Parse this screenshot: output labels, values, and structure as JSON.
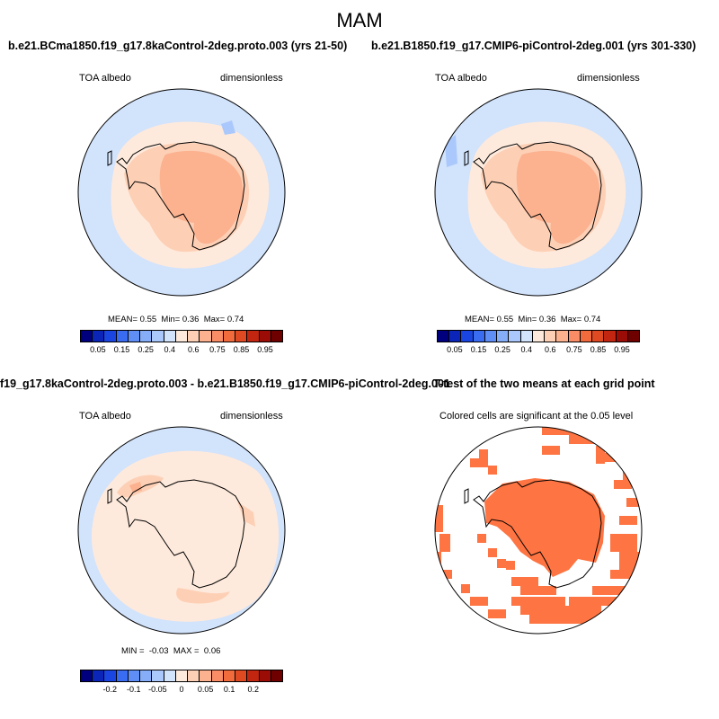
{
  "season": "MAM",
  "chart_data": [
    {
      "type": "heatmap",
      "title": "b.e21.BCma1850.f19_g17.8kaControl-2deg.proto.003 (yrs 21-50)",
      "left_label": "TOA albedo",
      "right_label": "dimensionless",
      "stats": {
        "mean_label": "MEAN=",
        "mean": "0.55",
        "min_label": "Min=",
        "min": "0.36",
        "max_label": "Max=",
        "max": "0.74"
      },
      "levels": [
        "0.05",
        "0.15",
        "0.25",
        "0.4",
        "0.6",
        "0.75",
        "0.85",
        "0.95"
      ],
      "colors": [
        "#00007f",
        "#0a25b8",
        "#1a45e0",
        "#3a6cf2",
        "#5e8ef6",
        "#86aef8",
        "#aac8fb",
        "#d2e3fc",
        "#feeadc",
        "#fdd0b6",
        "#fcb18f",
        "#fa8d66",
        "#f26b3d",
        "#e04a22",
        "#c22510",
        "#9a0c05",
        "#6e0000"
      ]
    },
    {
      "type": "heatmap",
      "title": "b.e21.B1850.f19_g17.CMIP6-piControl-2deg.001 (yrs 301-330)",
      "left_label": "TOA albedo",
      "right_label": "dimensionless",
      "stats": {
        "mean_label": "MEAN=",
        "mean": "0.55",
        "min_label": "Min=",
        "min": "0.36",
        "max_label": "Max=",
        "max": "0.74"
      },
      "levels": [
        "0.05",
        "0.15",
        "0.25",
        "0.4",
        "0.6",
        "0.75",
        "0.85",
        "0.95"
      ],
      "colors": [
        "#00007f",
        "#0a25b8",
        "#1a45e0",
        "#3a6cf2",
        "#5e8ef6",
        "#86aef8",
        "#aac8fb",
        "#d2e3fc",
        "#feeadc",
        "#fdd0b6",
        "#fcb18f",
        "#fa8d66",
        "#f26b3d",
        "#e04a22",
        "#c22510",
        "#9a0c05",
        "#6e0000"
      ]
    },
    {
      "type": "heatmap",
      "title": "f19_g17.8kaControl-2deg.proto.003 - b.e21.B1850.f19_g17.CMIP6-piControl-2deg.001",
      "left_label": "TOA albedo",
      "right_label": "dimensionless",
      "stats": {
        "min_label": "MIN =",
        "min": "-0.03",
        "max_label": "MAX =",
        "max": "0.06"
      },
      "levels": [
        "-0.2",
        "-0.1",
        "-0.05",
        "0",
        "0.05",
        "0.1",
        "0.2"
      ],
      "colors": [
        "#00007f",
        "#0a25b8",
        "#1a45e0",
        "#3a6cf2",
        "#5e8ef6",
        "#86aef8",
        "#aac8fb",
        "#d2e3fc",
        "#feeadc",
        "#fdd0b6",
        "#fcb18f",
        "#fa8d66",
        "#f26b3d",
        "#e04a22",
        "#c22510",
        "#9a0c05",
        "#6e0000"
      ]
    },
    {
      "type": "heatmap",
      "title": "T-test of the two means at each grid point",
      "subtitle": "Colored cells are significant at the 0.05 level",
      "significant_color": "#fe7442"
    }
  ]
}
